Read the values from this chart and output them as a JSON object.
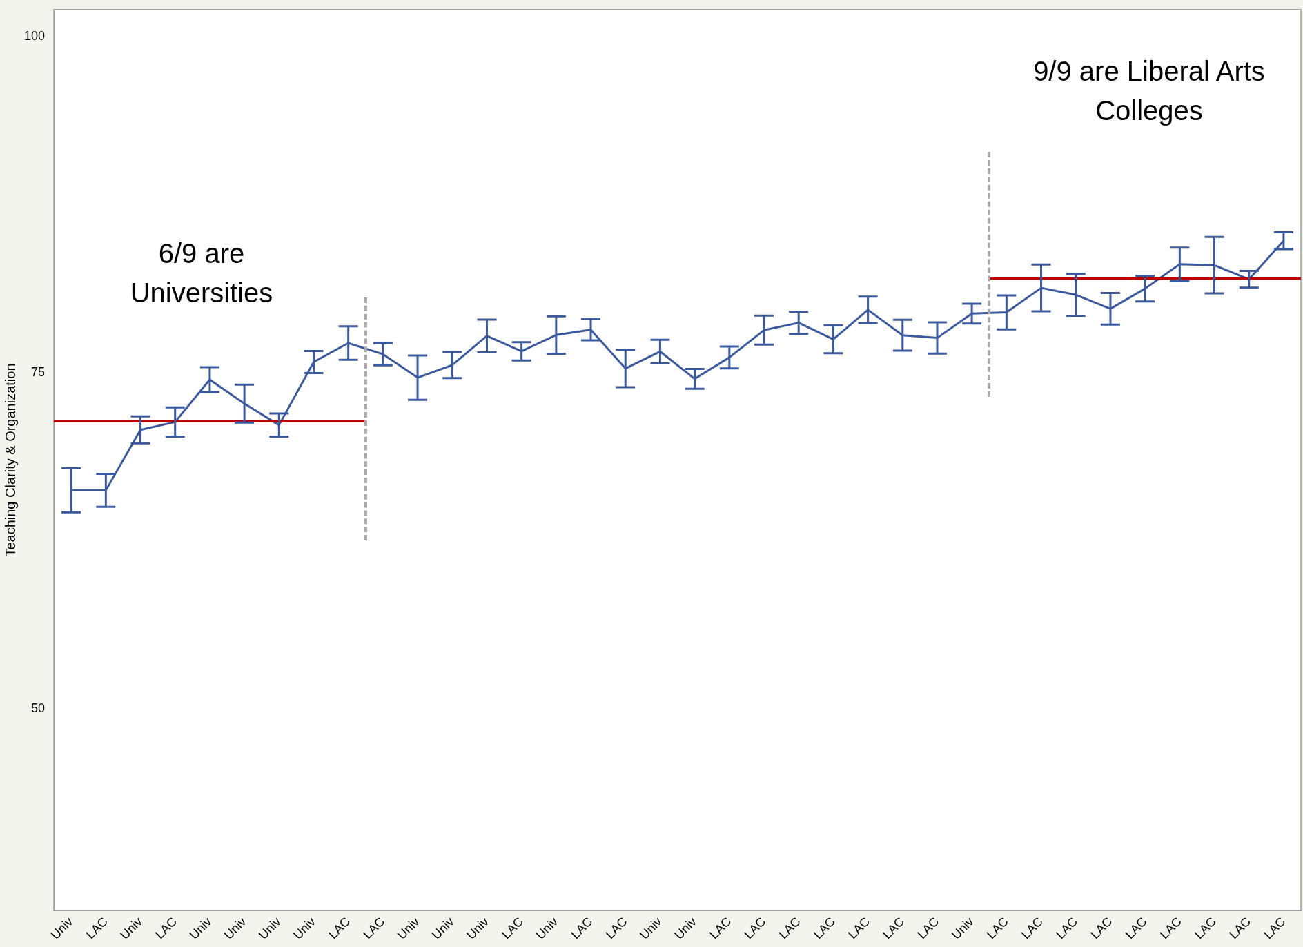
{
  "chart_data": {
    "type": "line",
    "ylabel": "Teaching Clarity & Organization",
    "categories": [
      "Univ",
      "LAC",
      "Univ",
      "LAC",
      "Univ",
      "Univ",
      "Univ",
      "Univ",
      "LAC",
      "LAC",
      "Univ",
      "Univ",
      "Univ",
      "LAC",
      "Univ",
      "LAC",
      "LAC",
      "Univ",
      "Univ",
      "LAC",
      "LAC",
      "LAC",
      "LAC",
      "LAC",
      "LAC",
      "LAC",
      "Univ",
      "LAC",
      "LAC",
      "LAC",
      "LAC",
      "LAC",
      "LAC",
      "LAC",
      "LAC",
      "LAC"
    ],
    "series": [
      {
        "color": "#3b5a9d",
        "values": [
          66.25,
          66.25,
          70.75,
          71.33,
          74.48,
          72.7,
          71.1,
          75.79,
          77.2,
          76.37,
          74.63,
          75.56,
          77.73,
          76.59,
          77.8,
          78.19,
          75.31,
          76.57,
          74.54,
          76.13,
          78.16,
          78.71,
          77.48,
          79.67,
          77.78,
          77.58,
          79.39,
          79.48,
          81.3,
          80.79,
          79.75,
          81.25,
          83.06,
          82.99,
          81.94,
          84.81
        ],
        "errors": [
          1.64,
          1.23,
          1.0,
          1.08,
          0.92,
          1.41,
          0.87,
          0.82,
          1.24,
          0.82,
          1.65,
          0.97,
          1.22,
          0.68,
          1.39,
          0.79,
          1.39,
          0.88,
          0.74,
          0.82,
          1.08,
          0.83,
          1.04,
          0.98,
          1.15,
          1.16,
          0.74,
          1.26,
          1.74,
          1.56,
          1.17,
          0.96,
          1.24,
          2.1,
          0.62,
          0.63
        ]
      }
    ],
    "ylim": [
      35,
      102
    ],
    "yticks": [
      50,
      75,
      100
    ],
    "grid": false,
    "legend": false,
    "marker": "none",
    "line_style": "solid",
    "ref_lines": [
      {
        "axis": "y",
        "value": 71.39,
        "color": "#c00000",
        "line_style": "solid"
      },
      {
        "axis": "y",
        "value": 82.0,
        "color": "#c00000",
        "line_style": "solid"
      }
    ],
    "annotations": [
      "6/9 are\nUniversities",
      "9/9 are Liberal Arts\nColleges"
    ]
  }
}
